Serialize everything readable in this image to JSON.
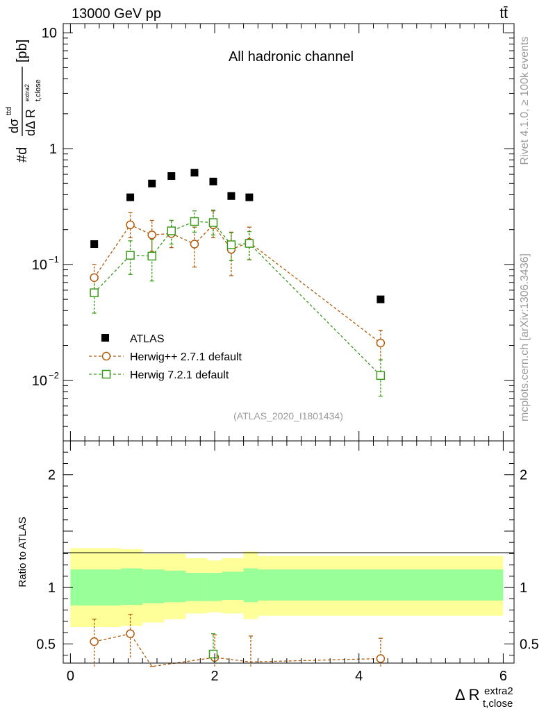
{
  "header": {
    "energy": "13000 GeV pp",
    "process": "tt̄"
  },
  "side": {
    "rivet": "Rivet 4.1.0, ≥ 100k events",
    "mcplots": "mcplots.cern.ch [arXiv:1306.3436]"
  },
  "chart_data": {
    "type": "line",
    "title": "All hadronic channel",
    "analysis_id": "(ATLAS_2020_I1801434)",
    "xlabel": "Δ R",
    "xlabel_sub": "t,close",
    "xlabel_sup": "extra2",
    "ylabel_parts": {
      "prefix": "#d",
      "num": "dσ",
      "num_sup": "ttd",
      "den": "dΔ R",
      "den_sub": "t,close",
      "den_sup": "extra2",
      "unit": "[pb]"
    },
    "xlim": [
      -0.1,
      6.15
    ],
    "ylim": [
      0.003,
      12
    ],
    "yscale": "log",
    "yticks": [
      {
        "value": 0.01,
        "base": "10",
        "exp": "−2"
      },
      {
        "value": 0.1,
        "base": "10",
        "exp": "−1"
      },
      {
        "value": 1,
        "base": "1",
        "exp": ""
      },
      {
        "value": 10,
        "base": "10",
        "exp": ""
      }
    ],
    "xticks": [
      0,
      2,
      4,
      6
    ],
    "bins": [
      {
        "x": 0.3,
        "lo": 0.0,
        "hi": 0.7
      },
      {
        "x": 0.8,
        "lo": 0.7,
        "hi": 1.0
      },
      {
        "x": 1.1,
        "lo": 1.0,
        "hi": 1.3
      },
      {
        "x": 1.4,
        "lo": 1.3,
        "hi": 1.6
      },
      {
        "x": 1.7,
        "lo": 1.6,
        "hi": 1.9
      },
      {
        "x": 1.97,
        "lo": 1.9,
        "hi": 2.1
      },
      {
        "x": 2.2,
        "lo": 2.1,
        "hi": 2.4
      },
      {
        "x": 2.47,
        "lo": 2.4,
        "hi": 2.6
      },
      {
        "x": 4.3,
        "lo": 2.6,
        "hi": 6.0
      }
    ],
    "series": [
      {
        "name": "ATLAS",
        "marker": "filled-square",
        "color": "#000000",
        "x": [
          0.33,
          0.83,
          1.13,
          1.4,
          1.72,
          1.98,
          2.23,
          2.48,
          4.3
        ],
        "values": [
          0.15,
          0.38,
          0.5,
          0.58,
          0.62,
          0.52,
          0.39,
          0.38,
          0.05
        ]
      },
      {
        "name": "Herwig++ 2.7.1 default",
        "marker": "open-circle",
        "color": "#b05a0a",
        "x": [
          0.33,
          0.83,
          1.13,
          1.4,
          1.72,
          1.98,
          2.23,
          2.48,
          4.3
        ],
        "values": [
          0.077,
          0.22,
          0.18,
          0.185,
          0.15,
          0.22,
          0.135,
          0.155,
          0.021
        ],
        "err_low": [
          0.057,
          0.17,
          0.13,
          0.14,
          0.095,
          0.17,
          0.08,
          0.11,
          0.015
        ],
        "err_high": [
          0.1,
          0.28,
          0.24,
          0.24,
          0.21,
          0.29,
          0.19,
          0.21,
          0.027
        ]
      },
      {
        "name": "Herwig 7.2.1 default",
        "marker": "open-square",
        "color": "#3a9a1a",
        "x": [
          0.33,
          0.83,
          1.13,
          1.4,
          1.72,
          1.98,
          2.23,
          2.48,
          4.3
        ],
        "values": [
          0.057,
          0.12,
          0.118,
          0.195,
          0.235,
          0.23,
          0.148,
          0.152,
          0.011
        ],
        "err_low": [
          0.038,
          0.082,
          0.072,
          0.15,
          0.19,
          0.18,
          0.108,
          0.11,
          0.0073
        ],
        "err_high": [
          0.075,
          0.16,
          0.165,
          0.24,
          0.29,
          0.295,
          0.188,
          0.192,
          0.015
        ]
      }
    ],
    "ratio": {
      "ylabel": "Ratio to ATLAS",
      "ylim": [
        0.33,
        2.3
      ],
      "yticks": [
        0.5,
        1,
        2
      ],
      "ytick_labels": [
        "0.5",
        "1",
        "2"
      ],
      "band_inner": [
        [
          0.84,
          1.16
        ],
        [
          0.845,
          1.17
        ],
        [
          0.86,
          1.16
        ],
        [
          0.87,
          1.15
        ],
        [
          0.88,
          1.13
        ],
        [
          0.88,
          1.13
        ],
        [
          0.89,
          1.14
        ],
        [
          0.87,
          1.17
        ],
        [
          0.885,
          1.16
        ]
      ],
      "band_outer": [
        [
          0.65,
          1.35
        ],
        [
          0.66,
          1.34
        ],
        [
          0.69,
          1.3
        ],
        [
          0.72,
          1.3
        ],
        [
          0.77,
          1.26
        ],
        [
          0.78,
          1.24
        ],
        [
          0.77,
          1.26
        ],
        [
          0.72,
          1.32
        ],
        [
          0.75,
          1.28
        ]
      ],
      "herwigpp": {
        "x": [
          0.33,
          0.83,
          1.13,
          2.0,
          2.5,
          4.3
        ],
        "values": [
          0.52,
          0.59,
          0.3,
          0.38,
          0.34,
          0.37
        ],
        "err_low": [
          0.3,
          0.38,
          0.3,
          0.3,
          0.3,
          0.3
        ],
        "err_high": [
          0.72,
          0.76,
          0.3,
          0.58,
          0.57,
          0.55
        ]
      },
      "herwig7": {
        "x": [
          1.98
        ],
        "values": [
          0.41
        ],
        "err_low": [
          0.34
        ],
        "err_high": [
          0.59
        ]
      }
    }
  }
}
